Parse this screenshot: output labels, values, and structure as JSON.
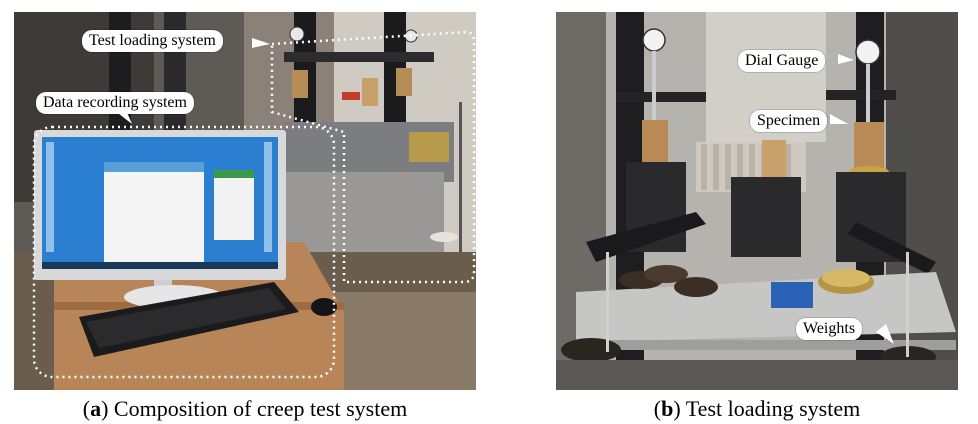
{
  "panels": [
    {
      "id": "a",
      "caption_label": "a",
      "caption_text": "Composition of creep test system",
      "callouts": {
        "test_loading": "Test loading system",
        "data_recording": "Data recording system"
      }
    },
    {
      "id": "b",
      "caption_label": "b",
      "caption_text": "Test loading system",
      "callouts": {
        "dial_gauge": "Dial Gauge",
        "specimen": "Specimen",
        "weights": "Weights"
      }
    }
  ]
}
